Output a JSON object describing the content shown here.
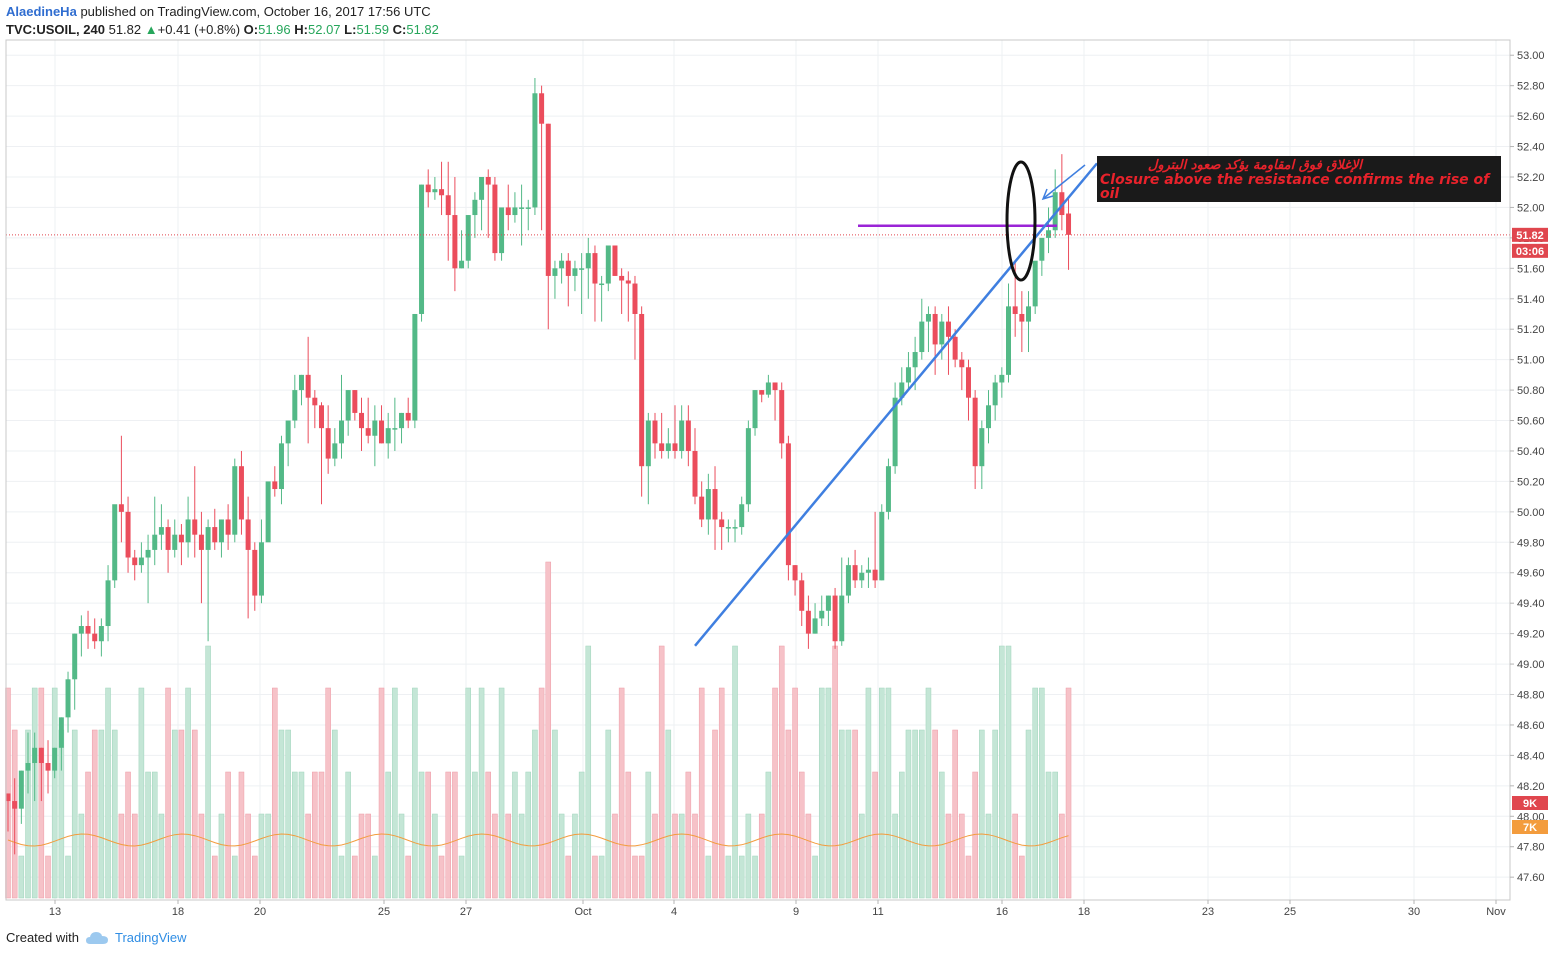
{
  "header": {
    "user": "AlaedineHa",
    "published_text": "published on TradingView.com, October 16, 2017 17:56 UTC",
    "symbol": "TVC:USOIL, 240",
    "last": "51.82",
    "change": "+0.41 (+0.8%)",
    "o_label": "O:",
    "o_value": "51.96",
    "h_label": "H:",
    "h_value": "52.07",
    "l_label": "L:",
    "l_value": "51.59",
    "c_label": "C:",
    "c_value": "51.82"
  },
  "footer": {
    "created_with": "Created with",
    "brand": "TradingView"
  },
  "colors": {
    "up": "#53b987",
    "down": "#eb4d5c",
    "up_vol": "#c4e6d6",
    "down_vol": "#f6c2c8",
    "vol_ma": "#f39c3d",
    "trendline": "#3f7fe0",
    "resistance": "#9a24d6",
    "price_line": "#e0464e"
  },
  "chart_data": {
    "type": "candlestick",
    "symbol": "TVC:USOIL",
    "interval": "240",
    "y_ticks": [
      "53.00",
      "52.80",
      "52.60",
      "52.40",
      "52.20",
      "52.00",
      "51.80",
      "51.60",
      "51.40",
      "51.20",
      "51.00",
      "50.80",
      "50.60",
      "50.40",
      "50.20",
      "50.00",
      "49.80",
      "49.60",
      "49.40",
      "49.20",
      "49.00",
      "48.80",
      "48.60",
      "48.40",
      "48.20",
      "48.00",
      "47.80",
      "47.60"
    ],
    "x_ticks": [
      "13",
      "18",
      "20",
      "25",
      "27",
      "Oct",
      "4",
      "9",
      "11",
      "16",
      "18",
      "23",
      "25",
      "30",
      "Nov"
    ],
    "ylim": [
      47.45,
      53.1
    ],
    "price_label": "51.82",
    "countdown_label": "03:06",
    "volume_label": "9K",
    "volume_ma_label": "7K",
    "resistance_level": 51.88,
    "trendline": {
      "from": {
        "bar": 103,
        "price": 49.12
      },
      "to": {
        "bar": 124,
        "price": 52.25
      }
    },
    "annotation": {
      "arabic": "الإغلاق فوق امقاومة يؤكد صعود البترول",
      "english": "Closure above the resistance confirms the rise of oil"
    },
    "candles": [
      [
        48.15,
        48.1,
        48.1,
        47.9
      ],
      [
        48.1,
        48.25,
        48.05,
        47.75
      ],
      [
        48.05,
        48.3,
        48.3,
        47.95
      ],
      [
        48.3,
        48.55,
        48.35,
        48.15
      ],
      [
        48.35,
        48.55,
        48.45,
        48.1
      ],
      [
        48.45,
        48.45,
        48.35,
        48.1
      ],
      [
        48.35,
        48.5,
        48.3,
        48.15
      ],
      [
        48.3,
        48.45,
        48.45,
        48.25
      ],
      [
        48.45,
        48.65,
        48.65,
        48.3
      ],
      [
        48.65,
        48.95,
        48.9,
        48.55
      ],
      [
        48.9,
        49.2,
        49.2,
        48.7
      ],
      [
        49.2,
        49.32,
        49.25,
        49.05
      ],
      [
        49.25,
        49.35,
        49.2,
        49.1
      ],
      [
        49.2,
        49.3,
        49.15,
        49.1
      ],
      [
        49.15,
        49.3,
        49.25,
        49.05
      ],
      [
        49.25,
        49.65,
        49.55,
        49.15
      ],
      [
        49.55,
        50.0,
        50.05,
        49.5
      ],
      [
        50.05,
        50.5,
        50.0,
        49.8
      ],
      [
        50.0,
        50.1,
        49.7,
        49.6
      ],
      [
        49.7,
        49.75,
        49.65,
        49.55
      ],
      [
        49.65,
        49.8,
        49.7,
        49.6
      ],
      [
        49.7,
        49.85,
        49.75,
        49.4
      ],
      [
        49.75,
        50.1,
        49.85,
        49.65
      ],
      [
        49.85,
        50.05,
        49.9,
        49.75
      ],
      [
        49.9,
        49.95,
        49.75,
        49.6
      ],
      [
        49.75,
        49.95,
        49.85,
        49.7
      ],
      [
        49.85,
        49.92,
        49.8,
        49.65
      ],
      [
        49.8,
        50.1,
        49.95,
        49.7
      ],
      [
        49.95,
        50.3,
        49.85,
        49.7
      ],
      [
        49.85,
        50.0,
        49.75,
        49.4
      ],
      [
        49.75,
        49.95,
        49.9,
        49.15
      ],
      [
        49.9,
        50.02,
        49.8,
        49.75
      ],
      [
        49.8,
        49.95,
        49.95,
        49.7
      ],
      [
        49.95,
        50.05,
        49.85,
        49.75
      ],
      [
        49.85,
        50.35,
        50.3,
        49.8
      ],
      [
        50.3,
        50.4,
        49.95,
        49.85
      ],
      [
        49.95,
        50.1,
        49.75,
        49.3
      ],
      [
        49.75,
        49.8,
        49.45,
        49.35
      ],
      [
        49.45,
        49.95,
        49.8,
        49.4
      ],
      [
        49.8,
        50.1,
        50.2,
        49.9
      ],
      [
        50.2,
        50.3,
        50.15,
        50.1
      ],
      [
        50.15,
        50.5,
        50.45,
        50.05
      ],
      [
        50.45,
        50.6,
        50.6,
        50.3
      ],
      [
        50.6,
        50.9,
        50.8,
        50.55
      ],
      [
        50.8,
        50.9,
        50.9,
        50.7
      ],
      [
        50.9,
        51.15,
        50.75,
        50.45
      ],
      [
        50.75,
        50.8,
        50.7,
        50.55
      ],
      [
        50.7,
        50.72,
        50.55,
        50.05
      ],
      [
        50.55,
        50.7,
        50.35,
        50.25
      ],
      [
        50.35,
        50.55,
        50.45,
        50.3
      ],
      [
        50.45,
        50.9,
        50.6,
        50.35
      ],
      [
        50.6,
        50.8,
        50.8,
        50.5
      ],
      [
        50.8,
        50.8,
        50.65,
        50.6
      ],
      [
        50.65,
        50.75,
        50.55,
        50.4
      ],
      [
        50.55,
        50.75,
        50.5,
        50.45
      ],
      [
        50.5,
        50.7,
        50.6,
        50.3
      ],
      [
        50.6,
        50.7,
        50.45,
        50.45
      ],
      [
        50.45,
        50.65,
        50.55,
        50.35
      ],
      [
        50.55,
        50.75,
        50.55,
        50.4
      ],
      [
        50.55,
        50.65,
        50.65,
        50.45
      ],
      [
        50.65,
        50.75,
        50.6,
        50.55
      ],
      [
        50.6,
        51.3,
        51.3,
        50.55
      ],
      [
        51.3,
        52.15,
        52.15,
        51.25
      ],
      [
        52.15,
        52.25,
        52.1,
        52.0
      ],
      [
        52.1,
        52.2,
        52.12,
        52.05
      ],
      [
        52.12,
        52.3,
        52.08,
        51.95
      ],
      [
        52.08,
        52.3,
        51.95,
        51.65
      ],
      [
        51.95,
        52.2,
        51.6,
        51.45
      ],
      [
        51.6,
        51.85,
        51.65,
        51.6
      ],
      [
        51.65,
        51.95,
        51.95,
        51.6
      ],
      [
        51.95,
        52.1,
        52.05,
        51.8
      ],
      [
        52.05,
        52.2,
        52.2,
        51.85
      ],
      [
        52.2,
        52.25,
        52.15,
        51.8
      ],
      [
        52.15,
        52.2,
        51.7,
        51.65
      ],
      [
        51.7,
        51.95,
        52.0,
        51.65
      ],
      [
        52.0,
        52.15,
        51.95,
        51.85
      ],
      [
        51.95,
        52.1,
        52.0,
        51.9
      ],
      [
        52.0,
        52.15,
        52.0,
        51.75
      ],
      [
        52.0,
        52.05,
        52.0,
        51.85
      ],
      [
        52.0,
        52.85,
        52.75,
        51.95
      ],
      [
        52.75,
        52.8,
        52.55,
        51.85
      ],
      [
        52.55,
        52.55,
        51.55,
        51.2
      ],
      [
        51.55,
        51.65,
        51.6,
        51.4
      ],
      [
        51.6,
        51.7,
        51.65,
        51.5
      ],
      [
        51.65,
        51.7,
        51.55,
        51.35
      ],
      [
        51.55,
        51.65,
        51.6,
        51.45
      ],
      [
        51.6,
        51.7,
        51.6,
        51.3
      ],
      [
        51.6,
        51.8,
        51.7,
        51.4
      ],
      [
        51.7,
        51.75,
        51.5,
        51.25
      ],
      [
        51.5,
        51.55,
        51.5,
        51.25
      ],
      [
        51.5,
        51.75,
        51.75,
        51.45
      ],
      [
        51.75,
        51.72,
        51.55,
        51.55
      ],
      [
        51.55,
        51.6,
        51.52,
        51.3
      ],
      [
        51.52,
        51.58,
        51.5,
        51.25
      ],
      [
        51.5,
        51.55,
        51.3,
        51.0
      ],
      [
        51.3,
        51.35,
        50.3,
        50.1
      ],
      [
        50.3,
        50.65,
        50.6,
        50.05
      ],
      [
        50.6,
        50.65,
        50.45,
        50.35
      ],
      [
        50.45,
        50.65,
        50.4,
        50.35
      ],
      [
        50.4,
        50.55,
        50.45,
        50.35
      ],
      [
        50.45,
        50.7,
        50.4,
        50.35
      ],
      [
        50.4,
        50.7,
        50.6,
        50.35
      ],
      [
        50.6,
        50.7,
        50.4,
        50.3
      ],
      [
        50.4,
        50.55,
        50.1,
        50.05
      ],
      [
        50.1,
        50.2,
        49.95,
        49.9
      ],
      [
        49.95,
        50.25,
        50.15,
        49.85
      ],
      [
        50.15,
        50.3,
        49.95,
        49.75
      ],
      [
        49.95,
        50.0,
        49.9,
        49.75
      ],
      [
        49.9,
        49.95,
        49.9,
        49.8
      ],
      [
        49.9,
        49.95,
        49.9,
        49.8
      ],
      [
        49.9,
        50.1,
        50.05,
        49.85
      ],
      [
        50.05,
        50.6,
        50.55,
        50.0
      ],
      [
        50.55,
        50.8,
        50.8,
        50.5
      ],
      [
        50.8,
        50.8,
        50.77,
        50.72
      ],
      [
        50.77,
        50.9,
        50.85,
        50.75
      ],
      [
        50.85,
        50.85,
        50.8,
        50.6
      ],
      [
        50.8,
        50.85,
        50.45,
        50.35
      ],
      [
        50.45,
        50.5,
        49.65,
        49.55
      ],
      [
        49.65,
        49.65,
        49.55,
        49.45
      ],
      [
        49.55,
        49.6,
        49.35,
        49.25
      ],
      [
        49.35,
        49.45,
        49.2,
        49.1
      ],
      [
        49.2,
        49.4,
        49.3,
        49.2
      ],
      [
        49.3,
        49.45,
        49.35,
        49.25
      ],
      [
        49.35,
        49.45,
        49.45,
        49.25
      ],
      [
        49.45,
        49.5,
        49.15,
        49.1
      ],
      [
        49.15,
        49.7,
        49.45,
        49.12
      ],
      [
        49.45,
        49.7,
        49.65,
        49.4
      ],
      [
        49.65,
        49.75,
        49.55,
        49.5
      ],
      [
        49.55,
        49.65,
        49.6,
        49.5
      ],
      [
        49.6,
        49.7,
        49.62,
        49.5
      ],
      [
        49.62,
        50.0,
        49.55,
        49.5
      ],
      [
        49.55,
        50.05,
        50.0,
        49.55
      ],
      [
        50.0,
        50.35,
        50.3,
        49.95
      ],
      [
        50.3,
        50.85,
        50.75,
        50.25
      ],
      [
        50.75,
        50.95,
        50.85,
        50.7
      ],
      [
        50.85,
        51.05,
        50.95,
        50.8
      ],
      [
        50.95,
        51.15,
        51.05,
        50.8
      ],
      [
        51.05,
        51.4,
        51.25,
        51.0
      ],
      [
        51.25,
        51.35,
        51.3,
        51.05
      ],
      [
        51.3,
        51.35,
        51.1,
        50.9
      ],
      [
        51.1,
        51.3,
        51.25,
        51.0
      ],
      [
        51.25,
        51.35,
        51.15,
        50.9
      ],
      [
        51.15,
        51.2,
        51.0,
        50.95
      ],
      [
        51.0,
        51.05,
        50.95,
        50.8
      ],
      [
        50.95,
        51.0,
        50.75,
        50.6
      ],
      [
        50.75,
        50.8,
        50.3,
        50.15
      ],
      [
        50.3,
        50.6,
        50.55,
        50.15
      ],
      [
        50.55,
        50.8,
        50.7,
        50.45
      ],
      [
        50.7,
        50.9,
        50.85,
        50.6
      ],
      [
        50.85,
        50.95,
        50.9,
        50.75
      ],
      [
        50.9,
        51.5,
        51.35,
        50.85
      ],
      [
        51.35,
        51.65,
        51.3,
        51.15
      ],
      [
        51.3,
        51.45,
        51.25,
        51.05
      ],
      [
        51.25,
        51.45,
        51.35,
        51.05
      ],
      [
        51.35,
        51.6,
        51.65,
        51.3
      ],
      [
        51.65,
        51.75,
        51.8,
        51.55
      ],
      [
        51.8,
        52.0,
        51.85,
        51.7
      ],
      [
        51.85,
        52.25,
        52.1,
        51.8
      ],
      [
        52.1,
        52.35,
        51.95,
        51.85
      ],
      [
        51.96,
        52.07,
        51.82,
        51.59
      ]
    ],
    "volume": [
      5,
      4,
      1,
      4,
      5,
      5,
      1,
      5,
      4,
      1,
      4,
      2,
      3,
      4,
      4,
      5,
      4,
      2,
      3,
      2,
      5,
      3,
      3,
      2,
      5,
      4,
      4,
      5,
      4,
      2,
      6,
      1,
      2,
      3,
      1,
      3,
      2,
      1,
      2,
      2,
      5,
      4,
      4,
      3,
      3,
      2,
      3,
      3,
      5,
      4,
      1,
      3,
      1,
      2,
      2,
      1,
      5,
      3,
      5,
      2,
      1,
      5,
      3,
      3,
      2,
      1,
      3,
      3,
      1,
      5,
      3,
      5,
      3,
      2,
      5,
      2,
      3,
      2,
      3,
      4,
      5,
      8,
      4,
      2,
      1,
      2,
      3,
      6,
      1,
      1,
      4,
      2,
      5,
      3,
      1,
      1,
      3,
      2,
      6,
      4,
      2,
      2,
      3,
      2,
      5,
      1,
      4,
      5,
      1,
      6,
      1,
      2,
      1,
      2,
      3,
      5,
      6,
      4,
      5,
      3,
      2,
      1,
      5,
      5,
      6,
      4,
      4,
      4,
      2,
      5,
      3,
      5,
      5,
      2,
      3,
      4,
      4,
      4,
      5,
      4,
      3,
      2,
      4,
      2,
      1,
      3,
      4,
      2,
      4,
      6,
      6,
      2,
      1,
      4,
      5,
      5,
      3,
      3,
      2,
      5
    ]
  }
}
